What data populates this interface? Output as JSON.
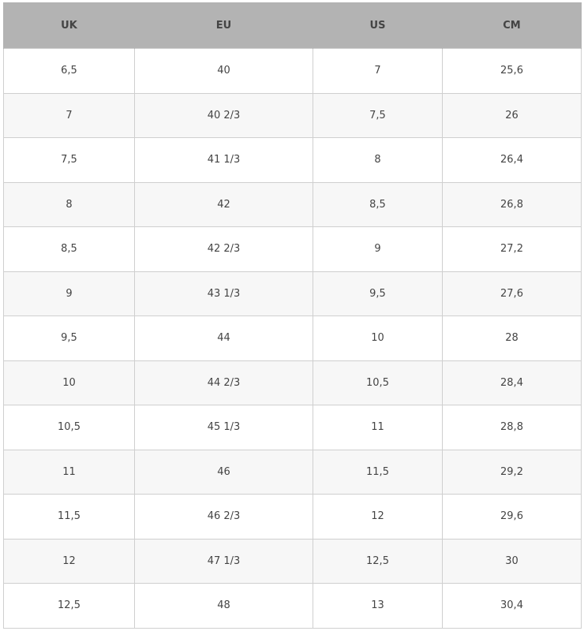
{
  "table": {
    "headers": [
      "UK",
      "EU",
      "US",
      "CM"
    ],
    "rows": [
      [
        "6,5",
        "40",
        "7",
        "25,6"
      ],
      [
        "7",
        "40 2/3",
        "7,5",
        "26"
      ],
      [
        "7,5",
        "41 1/3",
        "8",
        "26,4"
      ],
      [
        "8",
        "42",
        "8,5",
        "26,8"
      ],
      [
        "8,5",
        "42 2/3",
        "9",
        "27,2"
      ],
      [
        "9",
        "43 1/3",
        "9,5",
        "27,6"
      ],
      [
        "9,5",
        "44",
        "10",
        "28"
      ],
      [
        "10",
        "44 2/3",
        "10,5",
        "28,4"
      ],
      [
        "10,5",
        "45 1/3",
        "11",
        "28,8"
      ],
      [
        "11",
        "46",
        "11,5",
        "29,2"
      ],
      [
        "11,5",
        "46 2/3",
        "12",
        "29,6"
      ],
      [
        "12",
        "47 1/3",
        "12,5",
        "30"
      ],
      [
        "12,5",
        "48",
        "13",
        "30,4"
      ]
    ]
  },
  "colors": {
    "header_bg": "#b3b3b3",
    "alt_row_bg": "#f7f7f7",
    "border": "#cfcfcf",
    "text": "#444444"
  }
}
